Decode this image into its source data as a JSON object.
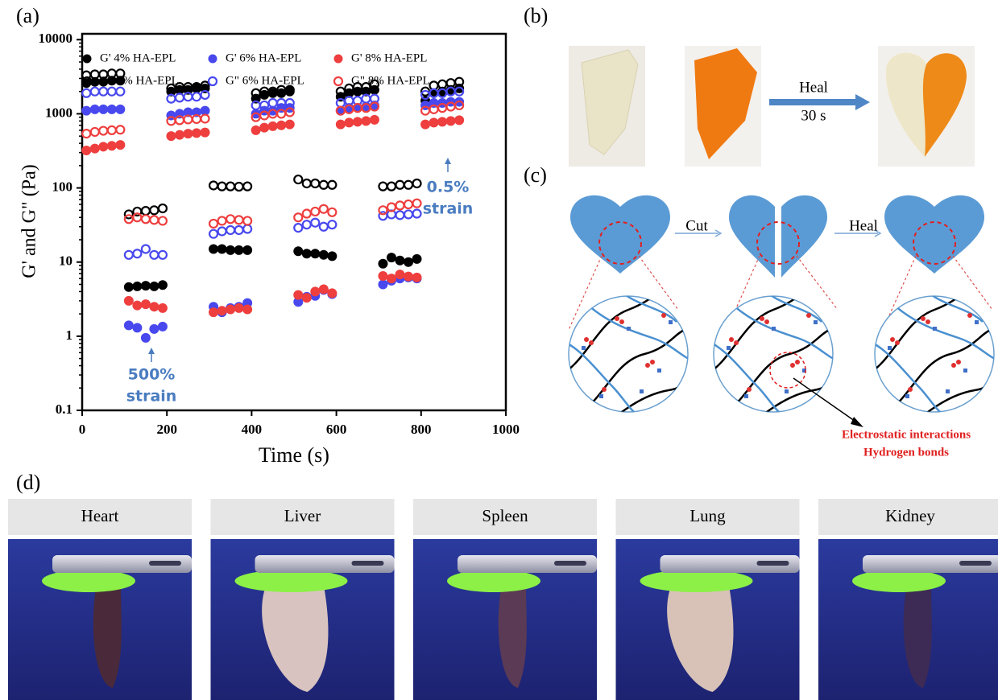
{
  "chart_data": {
    "type": "scatter",
    "xlabel": "Time (s)",
    "ylabel": "G' and G\" (Pa)",
    "xlim": [
      0,
      1000
    ],
    "xticks": [
      0,
      200,
      400,
      600,
      800,
      1000
    ],
    "ylim": [
      0.1,
      12000
    ],
    "yticks": [
      0.1,
      1,
      10,
      100,
      1000,
      10000
    ],
    "log_y": true,
    "grid": false,
    "x": [
      10,
      30,
      50,
      70,
      90,
      110,
      130,
      150,
      170,
      190,
      210,
      230,
      250,
      270,
      290,
      310,
      330,
      350,
      370,
      390,
      410,
      430,
      450,
      470,
      490,
      510,
      530,
      550,
      570,
      590,
      610,
      630,
      650,
      670,
      690,
      710,
      730,
      750,
      770,
      790,
      810,
      830,
      850,
      870,
      890
    ],
    "series": [
      {
        "name": "G' 4% HA-EPL",
        "color": "#000000",
        "marker": "filled",
        "values": [
          2600,
          2700,
          2700,
          2800,
          2800,
          4.6,
          4.7,
          4.8,
          4.7,
          4.9,
          2000,
          2100,
          2100,
          2200,
          2200,
          15,
          15,
          14.5,
          14.5,
          14.5,
          1600,
          1800,
          1900,
          1900,
          2000,
          14,
          13,
          13,
          12.5,
          12,
          1700,
          1900,
          2000,
          2000,
          2100,
          9.5,
          11.5,
          10.5,
          10,
          11,
          1500,
          1900,
          2000,
          2100,
          2200
        ]
      },
      {
        "name": "G\" 4% HA-EPL",
        "color": "#000000",
        "marker": "open",
        "values": [
          3300,
          3400,
          3400,
          3500,
          3500,
          44,
          48,
          49,
          50,
          53,
          2200,
          2300,
          2300,
          2300,
          2400,
          108,
          105,
          105,
          104,
          105,
          1900,
          2000,
          2000,
          2100,
          2100,
          130,
          115,
          115,
          110,
          110,
          2000,
          2200,
          2300,
          2300,
          2500,
          105,
          105,
          110,
          110,
          115,
          2000,
          2400,
          2500,
          2600,
          2700
        ]
      },
      {
        "name": "G' 6% HA-EPL",
        "color": "#4848ee",
        "marker": "filled",
        "values": [
          1100,
          1150,
          1150,
          1150,
          1150,
          1.4,
          1.3,
          0.95,
          1.25,
          1.35,
          950,
          1000,
          1050,
          1050,
          1100,
          2.5,
          2.1,
          2.4,
          2.5,
          2.8,
          1000,
          1100,
          1100,
          1200,
          1200,
          2.9,
          3.4,
          3.5,
          4.2,
          3.7,
          1100,
          1200,
          1200,
          1250,
          1300,
          5,
          5.6,
          6,
          6.2,
          6,
          1300,
          1400,
          1400,
          1450,
          1450
        ]
      },
      {
        "name": "G\" 6% HA-EPL",
        "color": "#4848ee",
        "marker": "open",
        "values": [
          1900,
          2000,
          2000,
          2000,
          2000,
          12.5,
          13,
          15,
          12.5,
          12.5,
          1600,
          1650,
          1700,
          1700,
          1800,
          24,
          26,
          27,
          27,
          28,
          1300,
          1300,
          1400,
          1400,
          1400,
          29,
          32,
          34,
          30,
          32,
          1400,
          1500,
          1500,
          1600,
          1600,
          42,
          44,
          43,
          44,
          45,
          1800,
          1900,
          1900,
          2000,
          2000
        ]
      },
      {
        "name": "G' 8% HA-EPL",
        "color": "#ee3e3e",
        "marker": "filled",
        "values": [
          320,
          340,
          360,
          370,
          380,
          3,
          2.6,
          2.7,
          2.5,
          2.4,
          500,
          520,
          540,
          550,
          560,
          2.1,
          2.2,
          2.3,
          2.4,
          2.3,
          600,
          650,
          680,
          700,
          720,
          3.6,
          3.3,
          4,
          4.3,
          3.8,
          720,
          760,
          780,
          800,
          830,
          6.5,
          6,
          6.8,
          6.4,
          6.2,
          720,
          760,
          780,
          800,
          820
        ]
      },
      {
        "name": "G\" 8% HA-EPL",
        "color": "#ee3e3e",
        "marker": "open",
        "values": [
          540,
          570,
          590,
          600,
          610,
          38,
          40,
          38,
          37,
          36,
          800,
          820,
          840,
          850,
          860,
          33,
          36,
          38,
          37,
          36,
          900,
          950,
          1000,
          1000,
          1050,
          40,
          45,
          48,
          52,
          47,
          1100,
          1150,
          1200,
          1200,
          1250,
          50,
          55,
          58,
          60,
          62,
          1100,
          1150,
          1200,
          1250,
          1300
        ]
      }
    ],
    "annotations": [
      {
        "lines": [
          "500%",
          "strain"
        ]
      },
      {
        "lines": [
          "0.5%",
          "strain"
        ]
      }
    ]
  },
  "panel_labels": [
    "(a)",
    "(b)",
    "(c)",
    "(d)"
  ],
  "panel_b": {
    "arrow_label": "Heal",
    "time": "30 s"
  },
  "panel_c": {
    "cut": "Cut",
    "heal": "Heal",
    "annotation": [
      "Electrostatic interactions",
      "Hydrogen bonds"
    ]
  },
  "panel_d": {
    "organs": [
      "Heart",
      "Liver",
      "Spleen",
      "Lung",
      "Kidney"
    ]
  }
}
